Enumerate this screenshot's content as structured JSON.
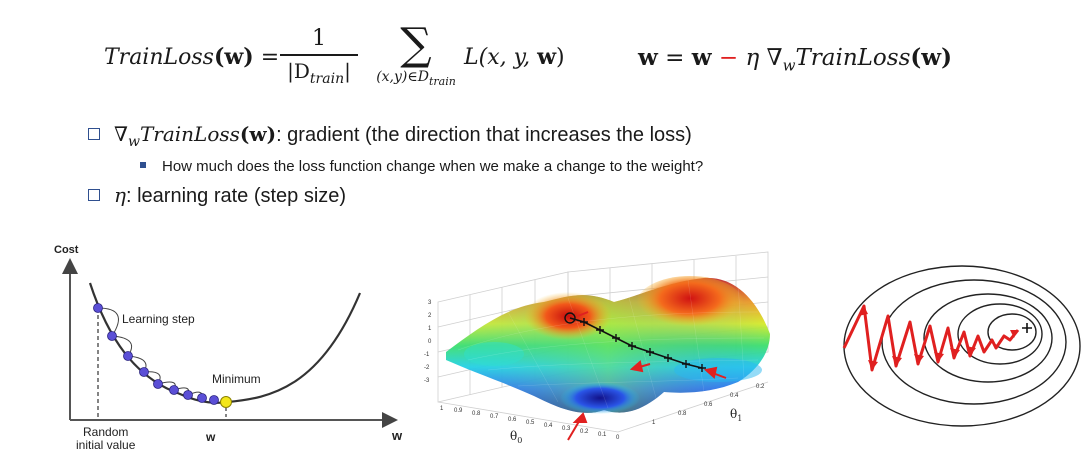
{
  "equations": {
    "loss": {
      "lhs": "TrainLoss",
      "w": "(w)",
      "equals": "=",
      "numerator": "1",
      "denominator": "|D",
      "denominator_sub": "train",
      "denominator_end": "|",
      "sum_symbol": "∑",
      "sum_subscript": "(x,y)∈D",
      "sum_subscript_sub": "train",
      "summand": "L(x, y, ",
      "summand_w": "w",
      "summand_end": ")"
    },
    "update": {
      "w1": "w",
      "equals": " = ",
      "w2": "w",
      "minus": " − ",
      "eta": "η",
      "nabla": " ∇",
      "nabla_sub": "w",
      "func": "TrainLoss",
      "arg": "(w)"
    }
  },
  "bullets": [
    {
      "nabla": "∇",
      "sub": "w",
      "func": "TrainLoss",
      "arg": "(w)",
      "text": ": gradient (the direction that increases the loss)"
    },
    {
      "text": "How much does the loss function change when we make a change to the weight?"
    },
    {
      "eta": "η",
      "text": ": learning rate (step size)"
    }
  ],
  "cost_figure": {
    "y_axis": "Cost",
    "x_axis": "w",
    "learning_step": "Learning step",
    "minimum": "Minimum",
    "random_initial": [
      "Random",
      "initial value"
    ],
    "w_mark": "w"
  },
  "surface_figure": {
    "z_ticks": [
      "3",
      "2",
      "1",
      "0",
      "-1",
      "-2",
      "-3"
    ],
    "x_ticks": [
      "1",
      "0.9",
      "0.8",
      "0.7",
      "0.6",
      "0.5",
      "0.4",
      "0.3",
      "0.2",
      "0.1",
      "0"
    ],
    "y_ticks": [
      "0.2",
      "0.4",
      "0.6",
      "0.8",
      "1"
    ],
    "x_label": "θ",
    "x_label_sub": "0",
    "y_label": "θ",
    "y_label_sub": "1"
  },
  "colors": {
    "accent_red": "#e02020",
    "bullet_blue": "#2f4f8f",
    "marker_purple": "#5b4fd6",
    "marker_yellow": "#f3e61a"
  }
}
